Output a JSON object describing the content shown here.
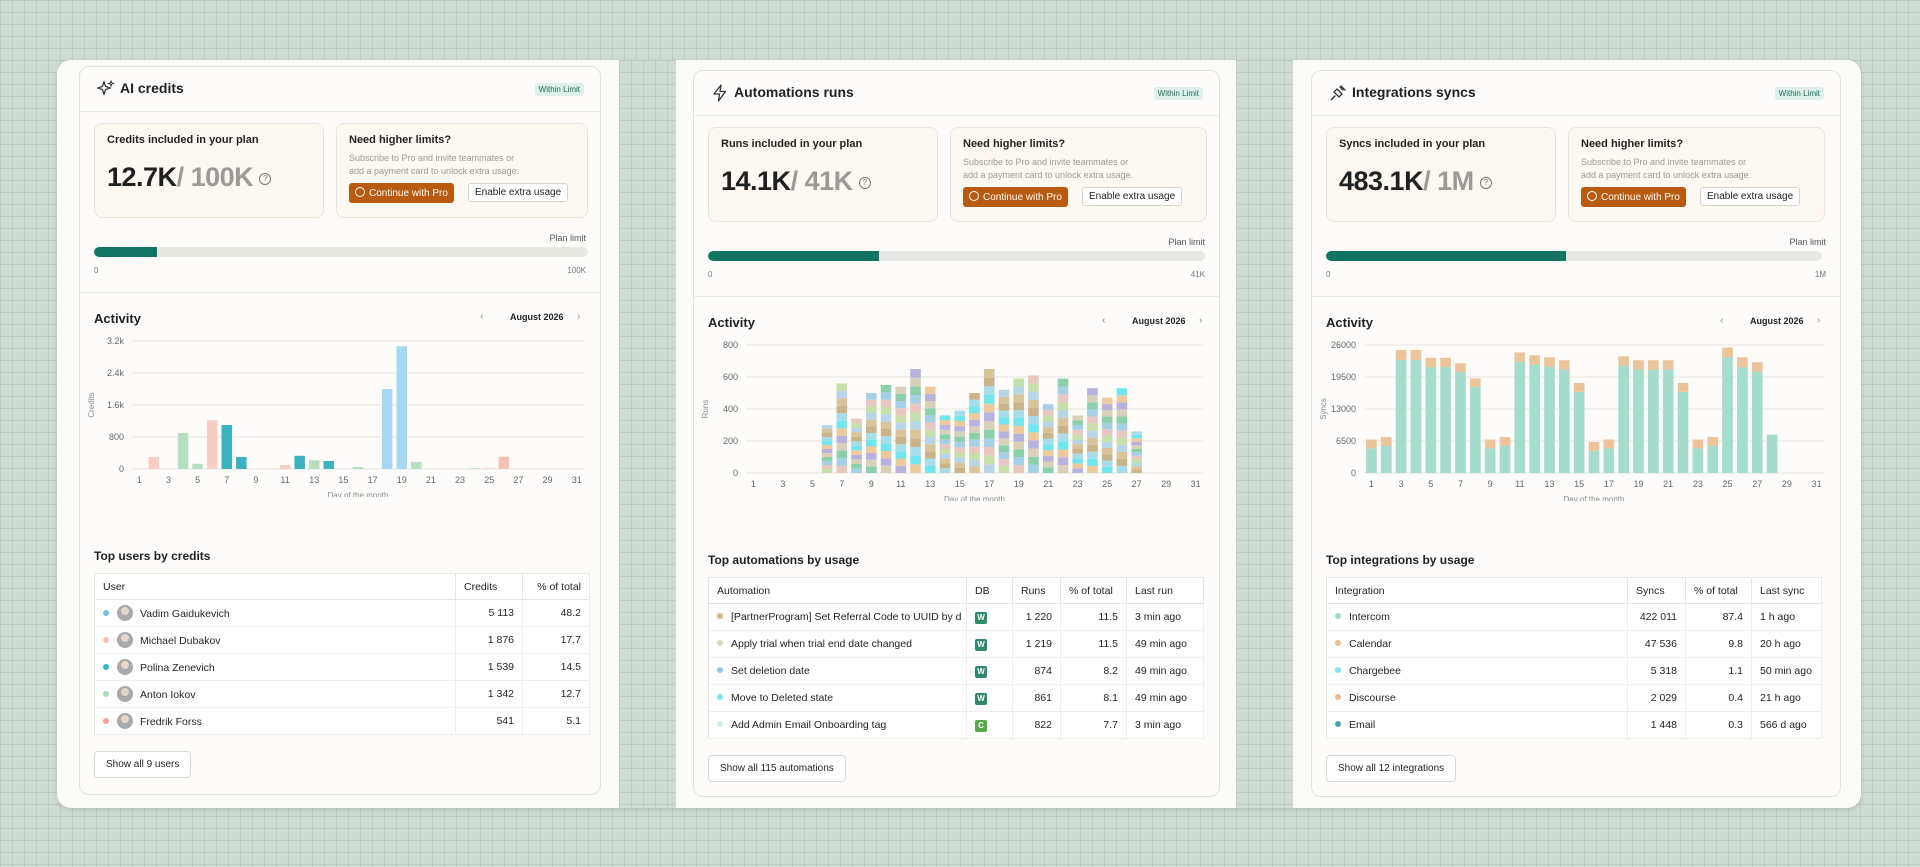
{
  "colors": {
    "accent": "#127563",
    "pro_button": "#b85a10",
    "badge_bg": "#dff0ea",
    "badge_text": "#1e6c5d"
  },
  "common": {
    "need_title": "Need higher limits?",
    "need_text": "Subscribe to Pro and invite teammates or add a payment card to unlock extra usage.",
    "pro_label": "Continue with Pro",
    "extra_label": "Enable extra usage",
    "plan_limit": "Plan limit",
    "activity": "Activity",
    "month": "August 2026",
    "xlabel": "Day of the month",
    "badge": "Within Limit",
    "zero": "0",
    "prev": "‹",
    "next": "›"
  },
  "panels": [
    {
      "title": "AI credits",
      "icon": "sparkle-icon",
      "included_label": "Credits included in your plan",
      "used": "12.7K",
      "limit": "/ 100K",
      "progress_fraction": 0.127,
      "max_label": "100K",
      "section_title": "Top users by credits",
      "columns": [
        "User",
        "Credits",
        "% of total"
      ],
      "rows": [
        {
          "name": "Vadim Gaidukevich",
          "value": "5 113",
          "pct": "48.2",
          "dot": "#6cc2e0"
        },
        {
          "name": "Michael Dubakov",
          "value": "1 876",
          "pct": "17.7",
          "dot": "#f4c0b0"
        },
        {
          "name": "Polina Zenevich",
          "value": "1 539",
          "pct": "14.5",
          "dot": "#3bb2c0"
        },
        {
          "name": "Anton Iokov",
          "value": "1 342",
          "pct": "12.7",
          "dot": "#aedcbd"
        },
        {
          "name": "Fredrik Forss",
          "value": "541",
          "pct": "5.1",
          "dot": "#f3a6a0"
        }
      ],
      "show_all": "Show all 9 users"
    },
    {
      "title": "Automations runs",
      "icon": "lightning-icon",
      "included_label": "Runs included in your plan",
      "used": "14.1K",
      "limit": "/ 41K",
      "progress_fraction": 0.344,
      "max_label": "41K",
      "section_title": "Top automations by usage",
      "columns": [
        "Automation",
        "DB",
        "Runs",
        "% of total",
        "Last run"
      ],
      "rows": [
        {
          "name": "[PartnerProgram] Set Referral Code to UUID by d",
          "db": "W",
          "db_color": "#2f8a68",
          "value": "1 220",
          "pct": "11.5",
          "last": "3 min ago",
          "dot": "#d8b57a"
        },
        {
          "name": "Apply trial when trial end date changed",
          "db": "W",
          "db_color": "#2f8a68",
          "value": "1 219",
          "pct": "11.5",
          "last": "49 min ago",
          "dot": "#d9dcb0"
        },
        {
          "name": "Set deletion date",
          "db": "W",
          "db_color": "#2f8a68",
          "value": "874",
          "pct": "8.2",
          "last": "49 min ago",
          "dot": "#8fc6ea"
        },
        {
          "name": "Move to Deleted state",
          "db": "W",
          "db_color": "#2f8a68",
          "value": "861",
          "pct": "8.1",
          "last": "49 min ago",
          "dot": "#6fe6ec"
        },
        {
          "name": "Add Admin Email Onboarding tag",
          "db": "C",
          "db_color": "#57a84a",
          "value": "822",
          "pct": "7.7",
          "last": "3 min ago",
          "dot": "#c9eef2"
        }
      ],
      "show_all": "Show all 115 automations"
    },
    {
      "title": "Integrations syncs",
      "icon": "plug-icon",
      "included_label": "Syncs included in your plan",
      "used": "483.1K",
      "limit": "/ 1M",
      "progress_fraction": 0.483,
      "max_label": "1M",
      "section_title": "Top integrations by usage",
      "columns": [
        "Integration",
        "Syncs",
        "% of total",
        "Last sync"
      ],
      "rows": [
        {
          "name": "Intercom",
          "value": "422 011",
          "pct": "87.4",
          "last": "1 h ago",
          "dot": "#9fd9c9"
        },
        {
          "name": "Calendar",
          "value": "47 536",
          "pct": "9.8",
          "last": "20 h ago",
          "dot": "#e9c196"
        },
        {
          "name": "Chargebee",
          "value": "5 318",
          "pct": "1.1",
          "last": "50 min ago",
          "dot": "#86e2ea"
        },
        {
          "name": "Discourse",
          "value": "2 029",
          "pct": "0.4",
          "last": "21 h ago",
          "dot": "#f0b48e"
        },
        {
          "name": "Email",
          "value": "1 448",
          "pct": "0.3",
          "last": "566 d ago",
          "dot": "#4ea3b5"
        }
      ],
      "show_all": "Show all 12 integrations"
    }
  ],
  "chart_data": [
    {
      "type": "bar",
      "ylabel": "Credits",
      "xlabel": "Day of the month",
      "ylim": [
        0,
        3200
      ],
      "yticks": [
        "0",
        "800",
        "1.6k",
        "2.4k",
        "3.2k"
      ],
      "ytick_values": [
        0,
        800,
        1600,
        2400,
        3200
      ],
      "xticks": [
        "1",
        "3",
        "5",
        "7",
        "9",
        "11",
        "13",
        "15",
        "17",
        "19",
        "21",
        "23",
        "25",
        "27",
        "29",
        "31"
      ],
      "days": [
        1,
        2,
        3,
        4,
        5,
        6,
        7,
        8,
        9,
        10,
        11,
        12,
        13,
        14,
        15,
        16,
        17,
        18,
        19,
        20,
        21,
        22,
        23,
        24,
        25,
        26,
        27,
        28,
        29,
        30,
        31
      ],
      "values": [
        0,
        300,
        0,
        900,
        130,
        1220,
        1100,
        300,
        0,
        0,
        100,
        330,
        220,
        200,
        0,
        50,
        0,
        2000,
        3070,
        180,
        0,
        0,
        0,
        20,
        20,
        310,
        0,
        0,
        0,
        0,
        0
      ],
      "bar_colors": [
        "#f4c0b0",
        "#f8cdc3",
        "#f4c0b0",
        "#b4e0c0",
        "#b4e0c0",
        "#f8cdc3",
        "#3bb2c0",
        "#3bb2c0",
        "#f4c0b0",
        "#f4c0b0",
        "#f8cdc3",
        "#3bb2c0",
        "#b4e0c0",
        "#3bb2c0",
        "#b4e0c0",
        "#b4e0c0",
        "#f8cdc3",
        "#a6d8f2",
        "#a6d8f2",
        "#b4e0c0",
        "#f4c0b0",
        "#f4c0b0",
        "#f4c0b0",
        "#b4e0c0",
        "#f8cdc3",
        "#f8c0b0",
        "#f4c0b0",
        "#f4c0b0",
        "#f4c0b0",
        "#f4c0b0",
        "#f4c0b0"
      ]
    },
    {
      "type": "bar",
      "stacked": true,
      "ylabel": "Runs",
      "xlabel": "Day of the month",
      "ylim": [
        0,
        800
      ],
      "yticks": [
        "0",
        "200",
        "400",
        "600",
        "800"
      ],
      "ytick_values": [
        0,
        200,
        400,
        600,
        800
      ],
      "xticks": [
        "1",
        "3",
        "5",
        "7",
        "9",
        "11",
        "13",
        "15",
        "17",
        "19",
        "21",
        "23",
        "25",
        "27",
        "29",
        "31"
      ],
      "days": [
        1,
        2,
        3,
        4,
        5,
        6,
        7,
        8,
        9,
        10,
        11,
        12,
        13,
        14,
        15,
        16,
        17,
        18,
        19,
        20,
        21,
        22,
        23,
        24,
        25,
        26,
        27,
        28,
        29,
        30,
        31
      ],
      "values": [
        0,
        0,
        0,
        0,
        0,
        300,
        560,
        340,
        500,
        550,
        540,
        650,
        540,
        360,
        390,
        500,
        650,
        520,
        590,
        610,
        430,
        590,
        360,
        530,
        470,
        530,
        260,
        0,
        0,
        0,
        0
      ],
      "segment_colors": [
        "#72e6ee",
        "#a7dde8",
        "#c9b48a",
        "#d9c49a",
        "#b6d6e8",
        "#c7dfa8",
        "#e8c7c0",
        "#a6cfe8",
        "#8bd0a8",
        "#d8d0b8",
        "#b7b3de",
        "#eec99c"
      ]
    },
    {
      "type": "bar",
      "stacked": true,
      "ylabel": "Syncs",
      "xlabel": "Day of the month",
      "ylim": [
        0,
        26000
      ],
      "yticks": [
        "0",
        "6500",
        "13000",
        "19500",
        "26000"
      ],
      "ytick_values": [
        0,
        6500,
        13000,
        19500,
        26000
      ],
      "xticks": [
        "1",
        "3",
        "5",
        "7",
        "9",
        "11",
        "13",
        "15",
        "17",
        "19",
        "21",
        "23",
        "25",
        "27",
        "29",
        "31"
      ],
      "days": [
        1,
        2,
        3,
        4,
        5,
        6,
        7,
        8,
        9,
        10,
        11,
        12,
        13,
        14,
        15,
        16,
        17,
        18,
        19,
        20,
        21,
        22,
        23,
        24,
        25,
        26,
        27,
        28,
        29,
        30,
        31
      ],
      "series": [
        {
          "name": "Intercom",
          "values": [
            5000,
            5500,
            23000,
            23000,
            21500,
            21500,
            20500,
            17500,
            5000,
            5500,
            22600,
            22000,
            21600,
            21000,
            16500,
            4500,
            5000,
            21800,
            21000,
            21000,
            21000,
            16500,
            5000,
            5500,
            23500,
            21500,
            20600,
            7800,
            0,
            0,
            0
          ]
        },
        {
          "name": "Calendar",
          "values": [
            1800,
            1800,
            2000,
            2000,
            1900,
            1900,
            1800,
            1700,
            1800,
            1800,
            1900,
            1900,
            1900,
            1900,
            1800,
            1800,
            1800,
            1900,
            1900,
            1900,
            1900,
            1800,
            1800,
            1800,
            2000,
            2000,
            1900,
            0,
            0,
            0,
            0
          ]
        }
      ],
      "colors": [
        "#a5dccd",
        "#ebc49a"
      ]
    }
  ]
}
